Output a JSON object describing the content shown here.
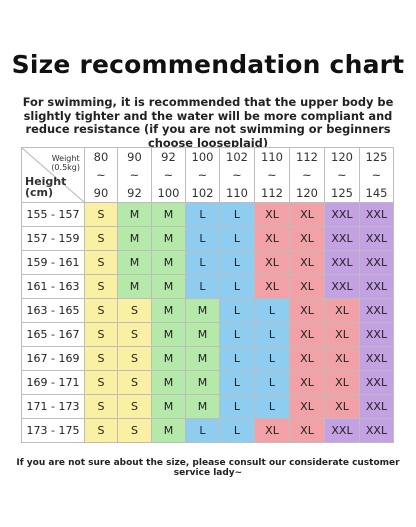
{
  "title": "Size recommendation chart",
  "subtitle": "For swimming, it is recommended that the upper body be slightly tighter and the water will be more compliant and reduce resistance (if you are not swimming or beginners choose looseplaid)",
  "table": {
    "weight_label": "Weight",
    "weight_unit": "(0.5kg)",
    "height_label": "Height",
    "height_unit": "(cm)",
    "weight_columns": [
      {
        "top": "80",
        "bottom": "90"
      },
      {
        "top": "90",
        "bottom": "92"
      },
      {
        "top": "92",
        "bottom": "100"
      },
      {
        "top": "100",
        "bottom": "102"
      },
      {
        "top": "102",
        "bottom": "110"
      },
      {
        "top": "110",
        "bottom": "112"
      },
      {
        "top": "112",
        "bottom": "120"
      },
      {
        "top": "120",
        "bottom": "125"
      },
      {
        "top": "125",
        "bottom": "145"
      }
    ],
    "height_rows": [
      "155 - 157",
      "157 - 159",
      "159 - 161",
      "161 - 163",
      "163 - 165",
      "165 - 167",
      "167 - 169",
      "169 - 171",
      "171 - 173",
      "173 - 175"
    ],
    "sizes": [
      [
        "S",
        "M",
        "M",
        "L",
        "L",
        "XL",
        "XL",
        "XXL",
        "XXL"
      ],
      [
        "S",
        "M",
        "M",
        "L",
        "L",
        "XL",
        "XL",
        "XXL",
        "XXL"
      ],
      [
        "S",
        "M",
        "M",
        "L",
        "L",
        "XL",
        "XL",
        "XXL",
        "XXL"
      ],
      [
        "S",
        "M",
        "M",
        "L",
        "L",
        "XL",
        "XL",
        "XXL",
        "XXL"
      ],
      [
        "S",
        "S",
        "M",
        "M",
        "L",
        "L",
        "XL",
        "XL",
        "XXL"
      ],
      [
        "S",
        "S",
        "M",
        "M",
        "L",
        "L",
        "XL",
        "XL",
        "XXL"
      ],
      [
        "S",
        "S",
        "M",
        "M",
        "L",
        "L",
        "XL",
        "XL",
        "XXL"
      ],
      [
        "S",
        "S",
        "M",
        "M",
        "L",
        "L",
        "XL",
        "XL",
        "XXL"
      ],
      [
        "S",
        "S",
        "M",
        "M",
        "L",
        "L",
        "XL",
        "XL",
        "XXL"
      ],
      [
        "S",
        "S",
        "M",
        "L",
        "L",
        "XL",
        "XL",
        "XXL",
        "XXL"
      ]
    ]
  },
  "footer": "If you are not sure about the size, please consult our considerate customer service lady~"
}
